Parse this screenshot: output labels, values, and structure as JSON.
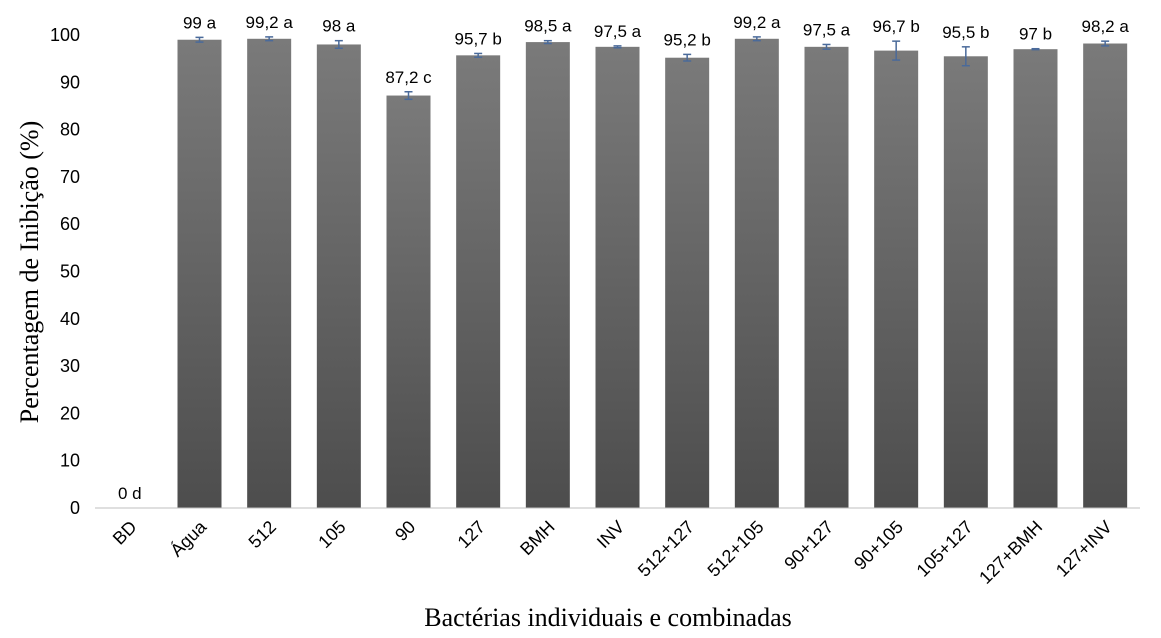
{
  "chart_data": {
    "type": "bar",
    "xlabel": "Bactérias individuais e combinadas",
    "ylabel": "Percentagem de Inibição (%)",
    "ylim": [
      0,
      100
    ],
    "yticks": [
      0,
      10,
      20,
      30,
      40,
      50,
      60,
      70,
      80,
      90,
      100
    ],
    "grid": false,
    "categories": [
      "BD",
      "Água",
      "512",
      "105",
      "90",
      "127",
      "BMH",
      "INV",
      "512+127",
      "512+105",
      "90+127",
      "90+105",
      "105+127",
      "127+BMH",
      "127+INV"
    ],
    "values": [
      0,
      99,
      99.2,
      98,
      87.2,
      95.7,
      98.5,
      97.5,
      95.2,
      99.2,
      97.5,
      96.7,
      95.5,
      97,
      98.2
    ],
    "errors": [
      0,
      0.5,
      0.4,
      0.8,
      0.8,
      0.4,
      0.3,
      0.2,
      0.7,
      0.4,
      0.5,
      2.0,
      2.0,
      0.1,
      0.5
    ],
    "data_labels": [
      "0 d",
      "99 a",
      "99,2 a",
      "98 a",
      "87,2 c",
      "95,7 b",
      "98,5 a",
      "97,5 a",
      "95,2 b",
      "99,2 a",
      "97,5 a",
      "96,7 b",
      "95,5 b",
      "97 b",
      "98,2 a"
    ],
    "colors": {
      "bar_top": "#7a7a7a",
      "bar_bottom": "#4d4d4d",
      "error_bar": "#4a6a9a",
      "axis": "#bfbfbf"
    }
  }
}
